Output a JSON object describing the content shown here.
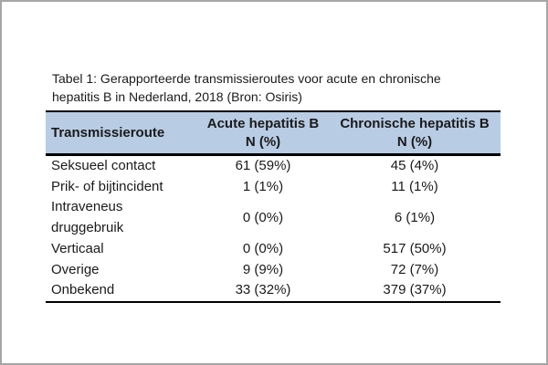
{
  "colors": {
    "header_bg": "#b8cce4",
    "rule": "#000000",
    "frame": "#a6a6a6",
    "text": "#1a1a1a"
  },
  "doc": {
    "title_lines": [
      "Tabel 1: Gerapporteerde transmissieroutes voor acute en chronische",
      "hepatitis B in Nederland, 2018 (Bron: Osiris)"
    ],
    "source": "Bron: Osiris",
    "table": {
      "header": {
        "route": "Transmissieroute",
        "acute": [
          "Acute hepatitis B",
          "N (%)"
        ],
        "chronic": [
          "Chronische hepatitis B",
          "N (%)"
        ]
      },
      "rows": [
        {
          "route": "Seksueel contact",
          "acute": "61 (59%)",
          "chronic": "45 (4%)"
        },
        {
          "route": "Prik- of bijtincident",
          "acute": "1 (1%)",
          "chronic": "11 (1%)"
        },
        {
          "route": "Intraveneus druggebruik",
          "acute": "0 (0%)",
          "chronic": "6 (1%)"
        },
        {
          "route": "Verticaal",
          "acute": "0 (0%)",
          "chronic": "517 (50%)"
        },
        {
          "route": "Overige",
          "acute": "9 (9%)",
          "chronic": "72 (7%)"
        },
        {
          "route": "Onbekend",
          "acute": "33 (32%)",
          "chronic": "379 (37%)"
        }
      ]
    }
  }
}
